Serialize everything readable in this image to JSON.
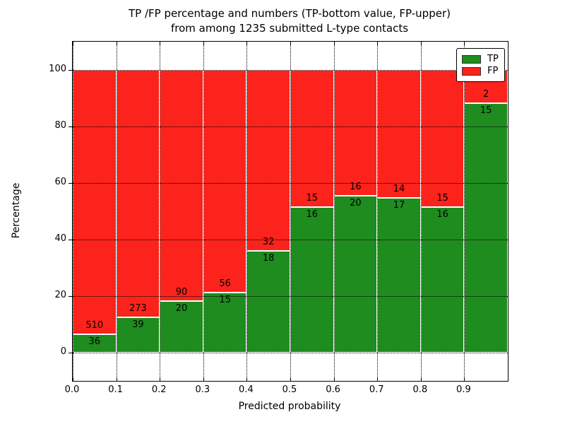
{
  "chart_data": {
    "type": "bar",
    "stacked": true,
    "orientation": "vertical",
    "title_lines": [
      "TP /FP percentage and numbers (TP-bottom value, FP-upper)",
      "from among 1235 submitted L-type contacts"
    ],
    "xlabel": "Predicted probability",
    "ylabel": "Percentage",
    "bin_starts": [
      0.0,
      0.1,
      0.2,
      0.3,
      0.4,
      0.5,
      0.6,
      0.7,
      0.8,
      0.9
    ],
    "bar_width": 0.1,
    "series": [
      {
        "name": "TP",
        "color": "#1e8c1e",
        "counts": [
          36,
          39,
          20,
          15,
          18,
          16,
          20,
          17,
          16,
          15
        ]
      },
      {
        "name": "FP",
        "color": "#fb231b",
        "counts": [
          510,
          273,
          90,
          56,
          32,
          15,
          16,
          14,
          15,
          2
        ]
      }
    ],
    "values_are": "counts shown as labels; bar heights are TP/(TP+FP) and FP/(TP+FP) percentages",
    "xticks": [
      "0.0",
      "0.1",
      "0.2",
      "0.3",
      "0.4",
      "0.5",
      "0.6",
      "0.7",
      "0.8",
      "0.9"
    ],
    "yticks": [
      0,
      20,
      40,
      60,
      80,
      100
    ],
    "xlim": [
      0.0,
      1.0
    ],
    "ylim": [
      -10,
      110
    ],
    "grid": "dotted",
    "legend": {
      "position": "upper right",
      "entries": [
        {
          "label": "TP",
          "color": "#1e8c1e"
        },
        {
          "label": "FP",
          "color": "#fb231b"
        }
      ]
    }
  }
}
